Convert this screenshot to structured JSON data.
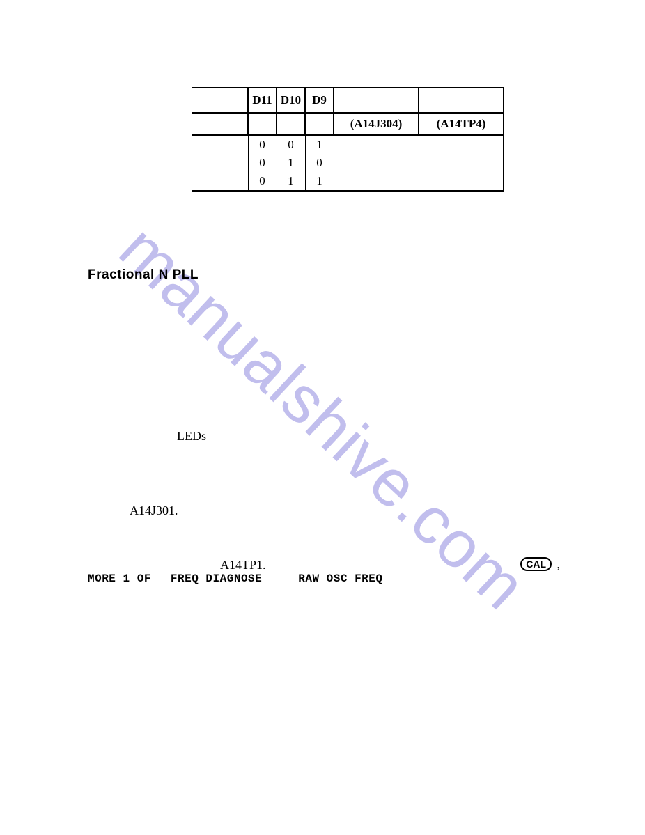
{
  "watermark": {
    "text": "manualshive.com",
    "color": "#b7b3ea"
  },
  "table": {
    "header": {
      "d11": "D11",
      "d10": "D10",
      "d9": "D9",
      "j304": "(A14J304)",
      "tp4": "(A14TP4)"
    },
    "rows": [
      {
        "d11": "0",
        "d10": "0",
        "d9": "1"
      },
      {
        "d11": "0",
        "d10": "1",
        "d9": "0"
      },
      {
        "d11": "0",
        "d10": "1",
        "d9": "1"
      }
    ]
  },
  "heading_frac": "Fractional N PLL",
  "label_leds": "LEDs",
  "label_a14j301": "A14J301.",
  "label_a14tp1": "A14TP1.",
  "kw_line": {
    "more": "MORE 1 OF",
    "freq_diag": "FREQ DIAGNOSE",
    "raw_osc": "RAW OSC FREQ"
  },
  "cal_label": "CAL",
  "comma": ","
}
